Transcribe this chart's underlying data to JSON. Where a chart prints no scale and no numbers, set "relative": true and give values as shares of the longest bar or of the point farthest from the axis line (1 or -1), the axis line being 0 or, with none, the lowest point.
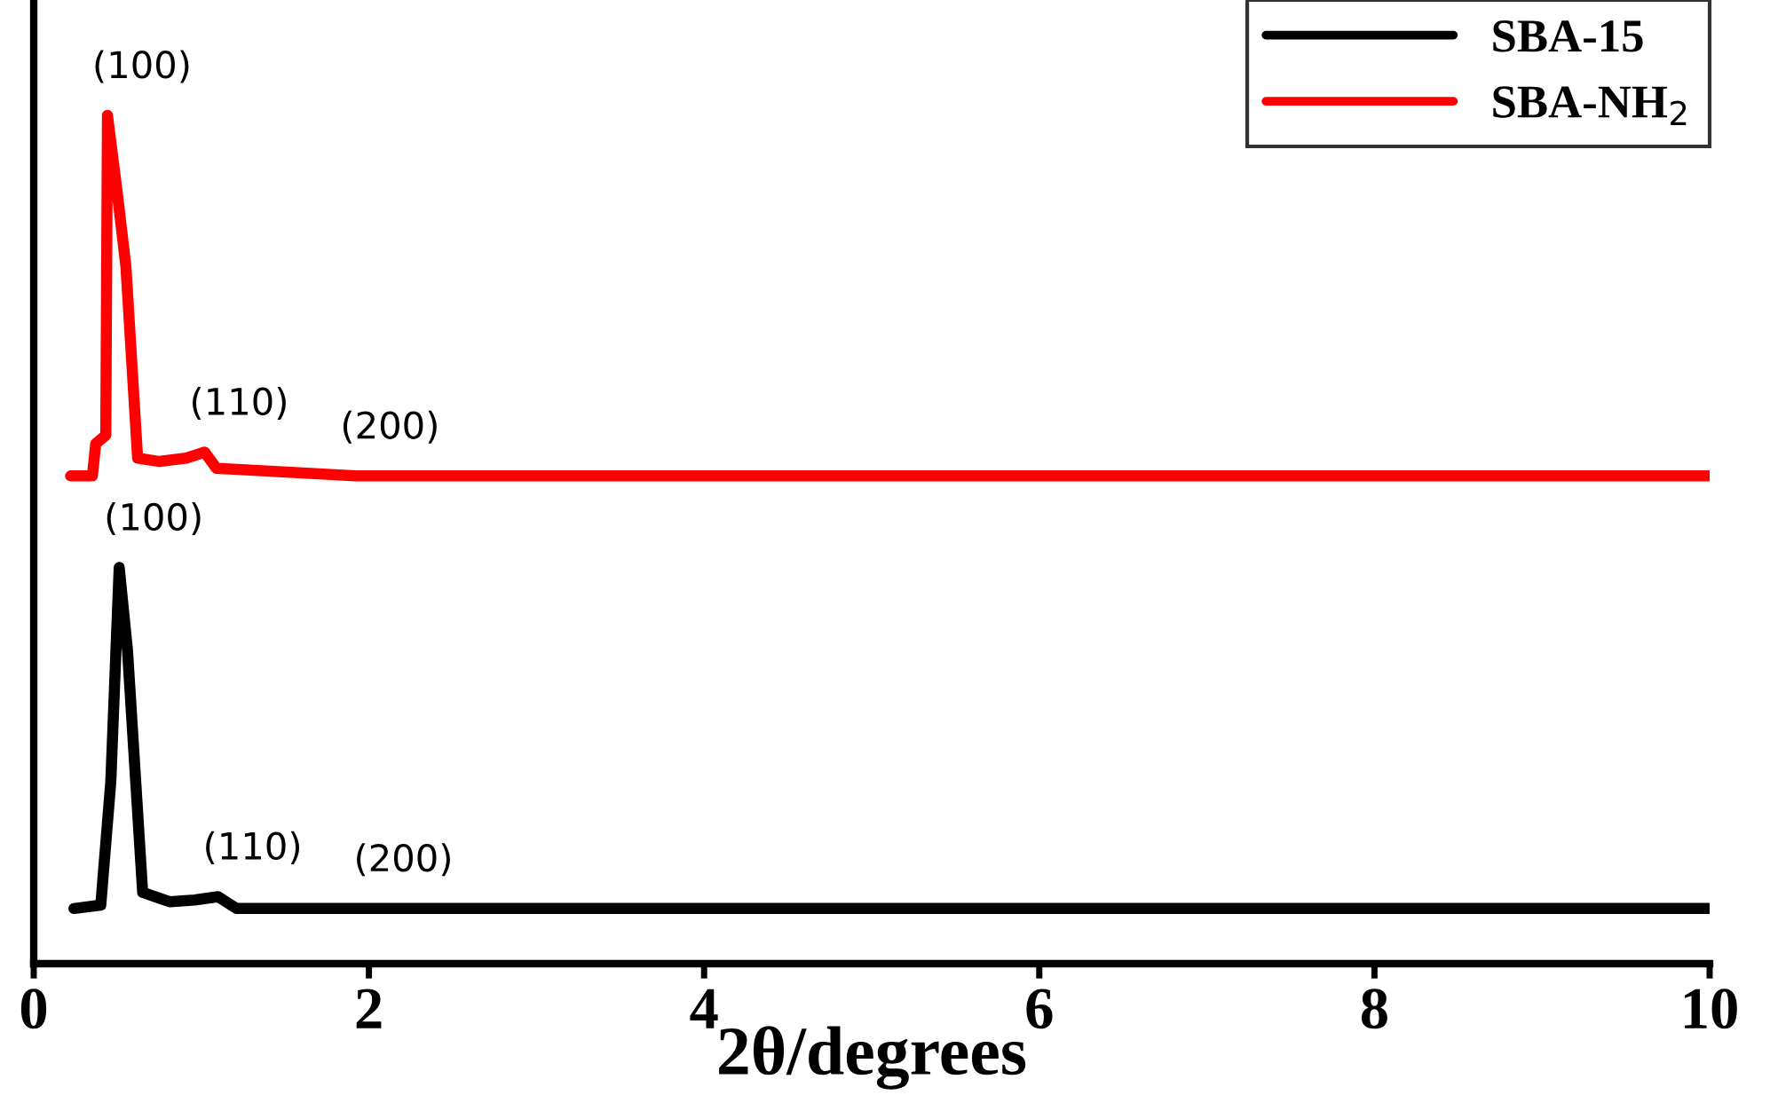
{
  "chart_data": {
    "type": "line",
    "relative": true,
    "xlabel": "2θ/degrees",
    "xlim": [
      0,
      10
    ],
    "xticks": [
      0,
      2,
      4,
      6,
      8,
      10
    ],
    "tick_labels": "x",
    "legend": "top right",
    "grid": false,
    "marker": "none",
    "line_style": "solid",
    "series": [
      {
        "name": "SBA-15",
        "color": "#000000",
        "x": [
          0.24,
          0.4,
          0.46,
          0.51,
          0.56,
          0.65,
          0.81,
          0.96,
          1.1,
          1.21,
          2.0,
          10.0
        ],
        "values": [
          0.065,
          0.069,
          0.215,
          0.467,
          0.368,
          0.084,
          0.073,
          0.075,
          0.079,
          0.065,
          0.065,
          0.065
        ]
      },
      {
        "name": "SBA-NH$_{2}$",
        "color": "#ff0000",
        "x": [
          0.22,
          0.35,
          0.37,
          0.43,
          0.44,
          0.5,
          0.55,
          0.62,
          0.75,
          0.91,
          1.02,
          1.09,
          1.92,
          10.0
        ],
        "values": [
          0.575,
          0.575,
          0.613,
          0.623,
          1.0,
          0.906,
          0.822,
          0.596,
          0.592,
          0.596,
          0.603,
          0.584,
          0.575,
          0.575
        ]
      }
    ],
    "annotations": [
      {
        "text": "(100)",
        "x": 0.44,
        "y": 1.0
      },
      {
        "text": "(110)",
        "x": 1.02,
        "y": 0.603
      },
      {
        "text": "(200)",
        "x": 1.92,
        "y": 0.575
      },
      {
        "text": "(100)",
        "x": 0.51,
        "y": 0.467
      },
      {
        "text": "(110)",
        "x": 1.1,
        "y": 0.079
      },
      {
        "text": "(200)",
        "x": 2.0,
        "y": 0.065
      }
    ]
  }
}
